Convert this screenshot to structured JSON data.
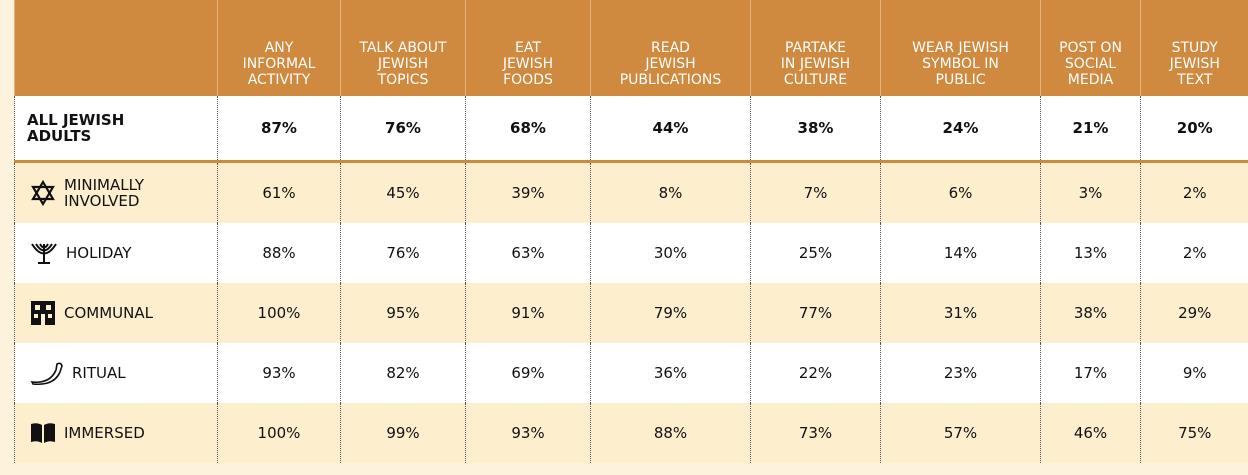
{
  "table": {
    "columns": [
      "ANY\nINFORMAL\nACTIVITY",
      "TALK ABOUT\nJEWISH\nTOPICS",
      "EAT\nJEWISH\nFOODS",
      "READ\nJEWISH\nPUBLICATIONS",
      "PARTAKE\nIN JEWISH\nCULTURE",
      "WEAR JEWISH\nSYMBOL IN\nPUBLIC",
      "POST ON\nSOCIAL\nMEDIA",
      "STUDY\nJEWISH\nTEXT"
    ],
    "rows": [
      {
        "label": "ALL JEWISH\nADULTS",
        "values": [
          "87%",
          "76%",
          "68%",
          "44%",
          "38%",
          "24%",
          "21%",
          "20%"
        ]
      },
      {
        "label": "MINIMALLY\nINVOLVED",
        "values": [
          "61%",
          "45%",
          "39%",
          "8%",
          "7%",
          "6%",
          "3%",
          "2%"
        ]
      },
      {
        "label": "HOLIDAY",
        "values": [
          "88%",
          "76%",
          "63%",
          "30%",
          "25%",
          "14%",
          "13%",
          "2%"
        ]
      },
      {
        "label": "COMMUNAL",
        "values": [
          "100%",
          "95%",
          "91%",
          "79%",
          "77%",
          "31%",
          "38%",
          "29%"
        ]
      },
      {
        "label": "RITUAL",
        "values": [
          "93%",
          "82%",
          "69%",
          "36%",
          "22%",
          "23%",
          "17%",
          "9%"
        ]
      },
      {
        "label": "IMMERSED",
        "values": [
          "100%",
          "99%",
          "93%",
          "88%",
          "73%",
          "57%",
          "46%",
          "75%"
        ]
      }
    ]
  }
}
